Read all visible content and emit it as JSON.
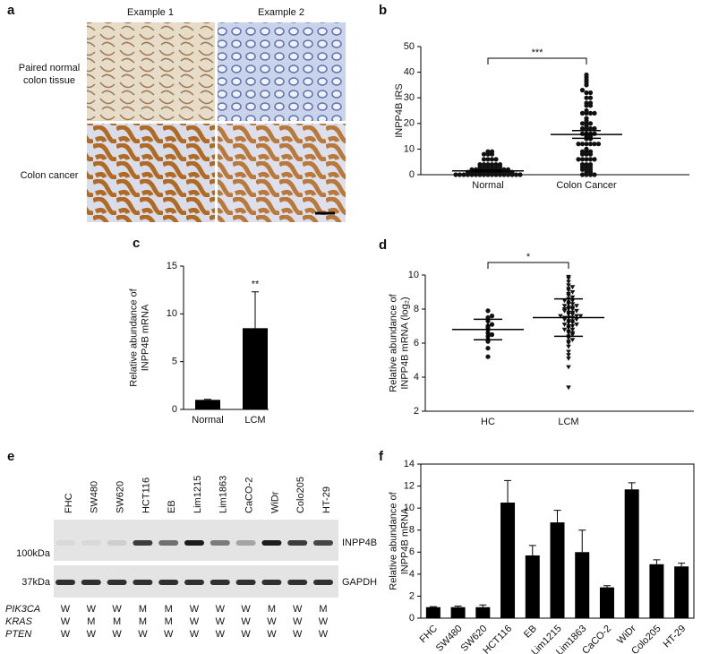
{
  "panel_a": {
    "panel": "a",
    "columns": [
      "Example 1",
      "Example 2"
    ],
    "rows": [
      [
        "Paired normal",
        "colon tissue"
      ],
      [
        "Colon cancer"
      ]
    ]
  },
  "panel_e": {
    "panel": "e",
    "lanes": [
      "FHC",
      "SW480",
      "SW620",
      "HCT116",
      "EB",
      "Lim1215",
      "Lim1863",
      "CaCO-2",
      "WiDr",
      "Colo205",
      "HT-29"
    ],
    "markers": [
      "100kDa",
      "37kDa"
    ],
    "bands": [
      "INPP4B",
      "GAPDH"
    ],
    "genotypes": [
      {
        "gene": "PIK3CA",
        "calls": [
          "W",
          "W",
          "W",
          "M",
          "M",
          "W",
          "W",
          "W",
          "M",
          "W",
          "M"
        ]
      },
      {
        "gene": "KRAS",
        "calls": [
          "W",
          "M",
          "M",
          "M",
          "M",
          "W",
          "W",
          "W",
          "W",
          "W",
          "W"
        ]
      },
      {
        "gene": "PTEN",
        "calls": [
          "W",
          "W",
          "W",
          "W",
          "W",
          "W",
          "W",
          "W",
          "W",
          "W",
          "W"
        ]
      }
    ]
  },
  "chart_data": [
    {
      "type": "dotplot",
      "panel": "b",
      "ylabel": [
        "INPP4B IRS"
      ],
      "ylim": [
        0,
        50
      ],
      "yticks": [
        0,
        10,
        20,
        30,
        40,
        50
      ],
      "significance": "***",
      "marker": "circle",
      "groups": [
        {
          "label": "Normal",
          "mean": 1.5,
          "error": 0.3,
          "values": [
            0,
            0,
            0,
            0,
            0,
            0,
            0,
            0,
            0,
            0,
            0,
            0,
            0,
            0,
            0,
            1,
            1,
            1,
            1,
            1,
            1,
            1,
            1,
            1,
            1,
            2,
            2,
            2,
            2,
            2,
            2,
            2,
            2,
            3,
            3,
            3,
            3,
            3,
            4,
            4,
            4,
            4,
            4,
            6,
            6,
            6,
            6,
            8,
            8,
            8,
            9,
            9,
            1,
            2,
            0,
            0,
            1,
            3,
            4,
            2
          ]
        },
        {
          "label": "Colon Cancer",
          "mean": 15.7,
          "error": 1.5,
          "values": [
            0,
            0,
            0,
            0,
            1,
            1,
            2,
            2,
            2,
            3,
            3,
            4,
            4,
            4,
            6,
            6,
            6,
            6,
            8,
            8,
            8,
            9,
            9,
            9,
            10,
            12,
            12,
            12,
            12,
            12,
            12,
            14,
            14,
            15,
            15,
            16,
            16,
            16,
            16,
            18,
            18,
            18,
            18,
            19,
            20,
            20,
            20,
            21,
            22,
            24,
            24,
            24,
            24,
            25,
            27,
            27,
            28,
            28,
            30,
            30,
            32,
            32,
            33,
            35,
            36,
            37,
            38,
            39,
            3,
            6
          ]
        }
      ]
    },
    {
      "type": "bar",
      "panel": "c",
      "ylabel": [
        "Relative abundance of",
        "INPP4B mRNA"
      ],
      "ylim": [
        0,
        15
      ],
      "yticks": [
        0,
        5,
        10,
        15
      ],
      "categories": [
        "Normal",
        "LCM"
      ],
      "values": [
        1,
        8.5
      ],
      "errors": [
        0.05,
        3.8
      ],
      "color": "#000000",
      "annotations": [
        null,
        "**"
      ]
    },
    {
      "type": "dotplot",
      "panel": "d",
      "ylabel": [
        "Relative abundance of",
        "INPP4B mRNA (log₂)"
      ],
      "ylim": [
        2,
        10
      ],
      "yticks": [
        2,
        4,
        6,
        8,
        10
      ],
      "significance": "*",
      "groups": [
        {
          "label": "HC",
          "marker": "circle",
          "mean": 6.8,
          "error": 0.6,
          "values": [
            5.2,
            5.7,
            6.1,
            6.2,
            6.4,
            6.5,
            6.6,
            6.8,
            6.9,
            7.0,
            7.1,
            7.3,
            7.5,
            7.6,
            7.9
          ]
        },
        {
          "label": "LCM",
          "marker": "triangle",
          "mean": 7.5,
          "error": 1.1,
          "values": [
            3.4,
            4.6,
            5.1,
            5.5,
            5.8,
            6.0,
            6.1,
            6.3,
            6.4,
            6.5,
            6.6,
            6.6,
            6.7,
            6.8,
            6.8,
            6.9,
            7.0,
            7.0,
            7.1,
            7.1,
            7.2,
            7.2,
            7.3,
            7.3,
            7.4,
            7.4,
            7.5,
            7.5,
            7.5,
            7.6,
            7.6,
            7.7,
            7.7,
            7.8,
            7.8,
            7.9,
            7.9,
            8.0,
            8.0,
            8.1,
            8.1,
            8.2,
            8.2,
            8.3,
            8.3,
            8.4,
            8.5,
            8.6,
            8.7,
            8.8,
            8.9,
            9.0,
            9.1,
            9.2,
            9.4,
            9.6,
            9.8,
            9.9,
            5.3,
            6.2,
            7.6,
            8.0,
            8.5,
            9.3
          ]
        }
      ]
    },
    {
      "type": "bar",
      "panel": "f",
      "ylabel": [
        "Relative abundance of",
        "INPP4B mRNA"
      ],
      "ylim": [
        0,
        14
      ],
      "yticks": [
        0,
        2,
        4,
        6,
        8,
        10,
        12,
        14
      ],
      "frame": true,
      "rotate_labels": true,
      "categories": [
        "FHC",
        "SW480",
        "SW620",
        "HCT116",
        "EB",
        "Lim1215",
        "Lim1863",
        "CaCO-2",
        "WiDr",
        "Colo205",
        "HT-29"
      ],
      "values": [
        1,
        1,
        1,
        10.5,
        5.7,
        8.7,
        6,
        2.8,
        11.7,
        4.9,
        4.7
      ],
      "errors": [
        0.05,
        0.1,
        0.2,
        2,
        0.9,
        1.1,
        2,
        0.15,
        0.6,
        0.4,
        0.3
      ],
      "color": "#000000"
    }
  ]
}
